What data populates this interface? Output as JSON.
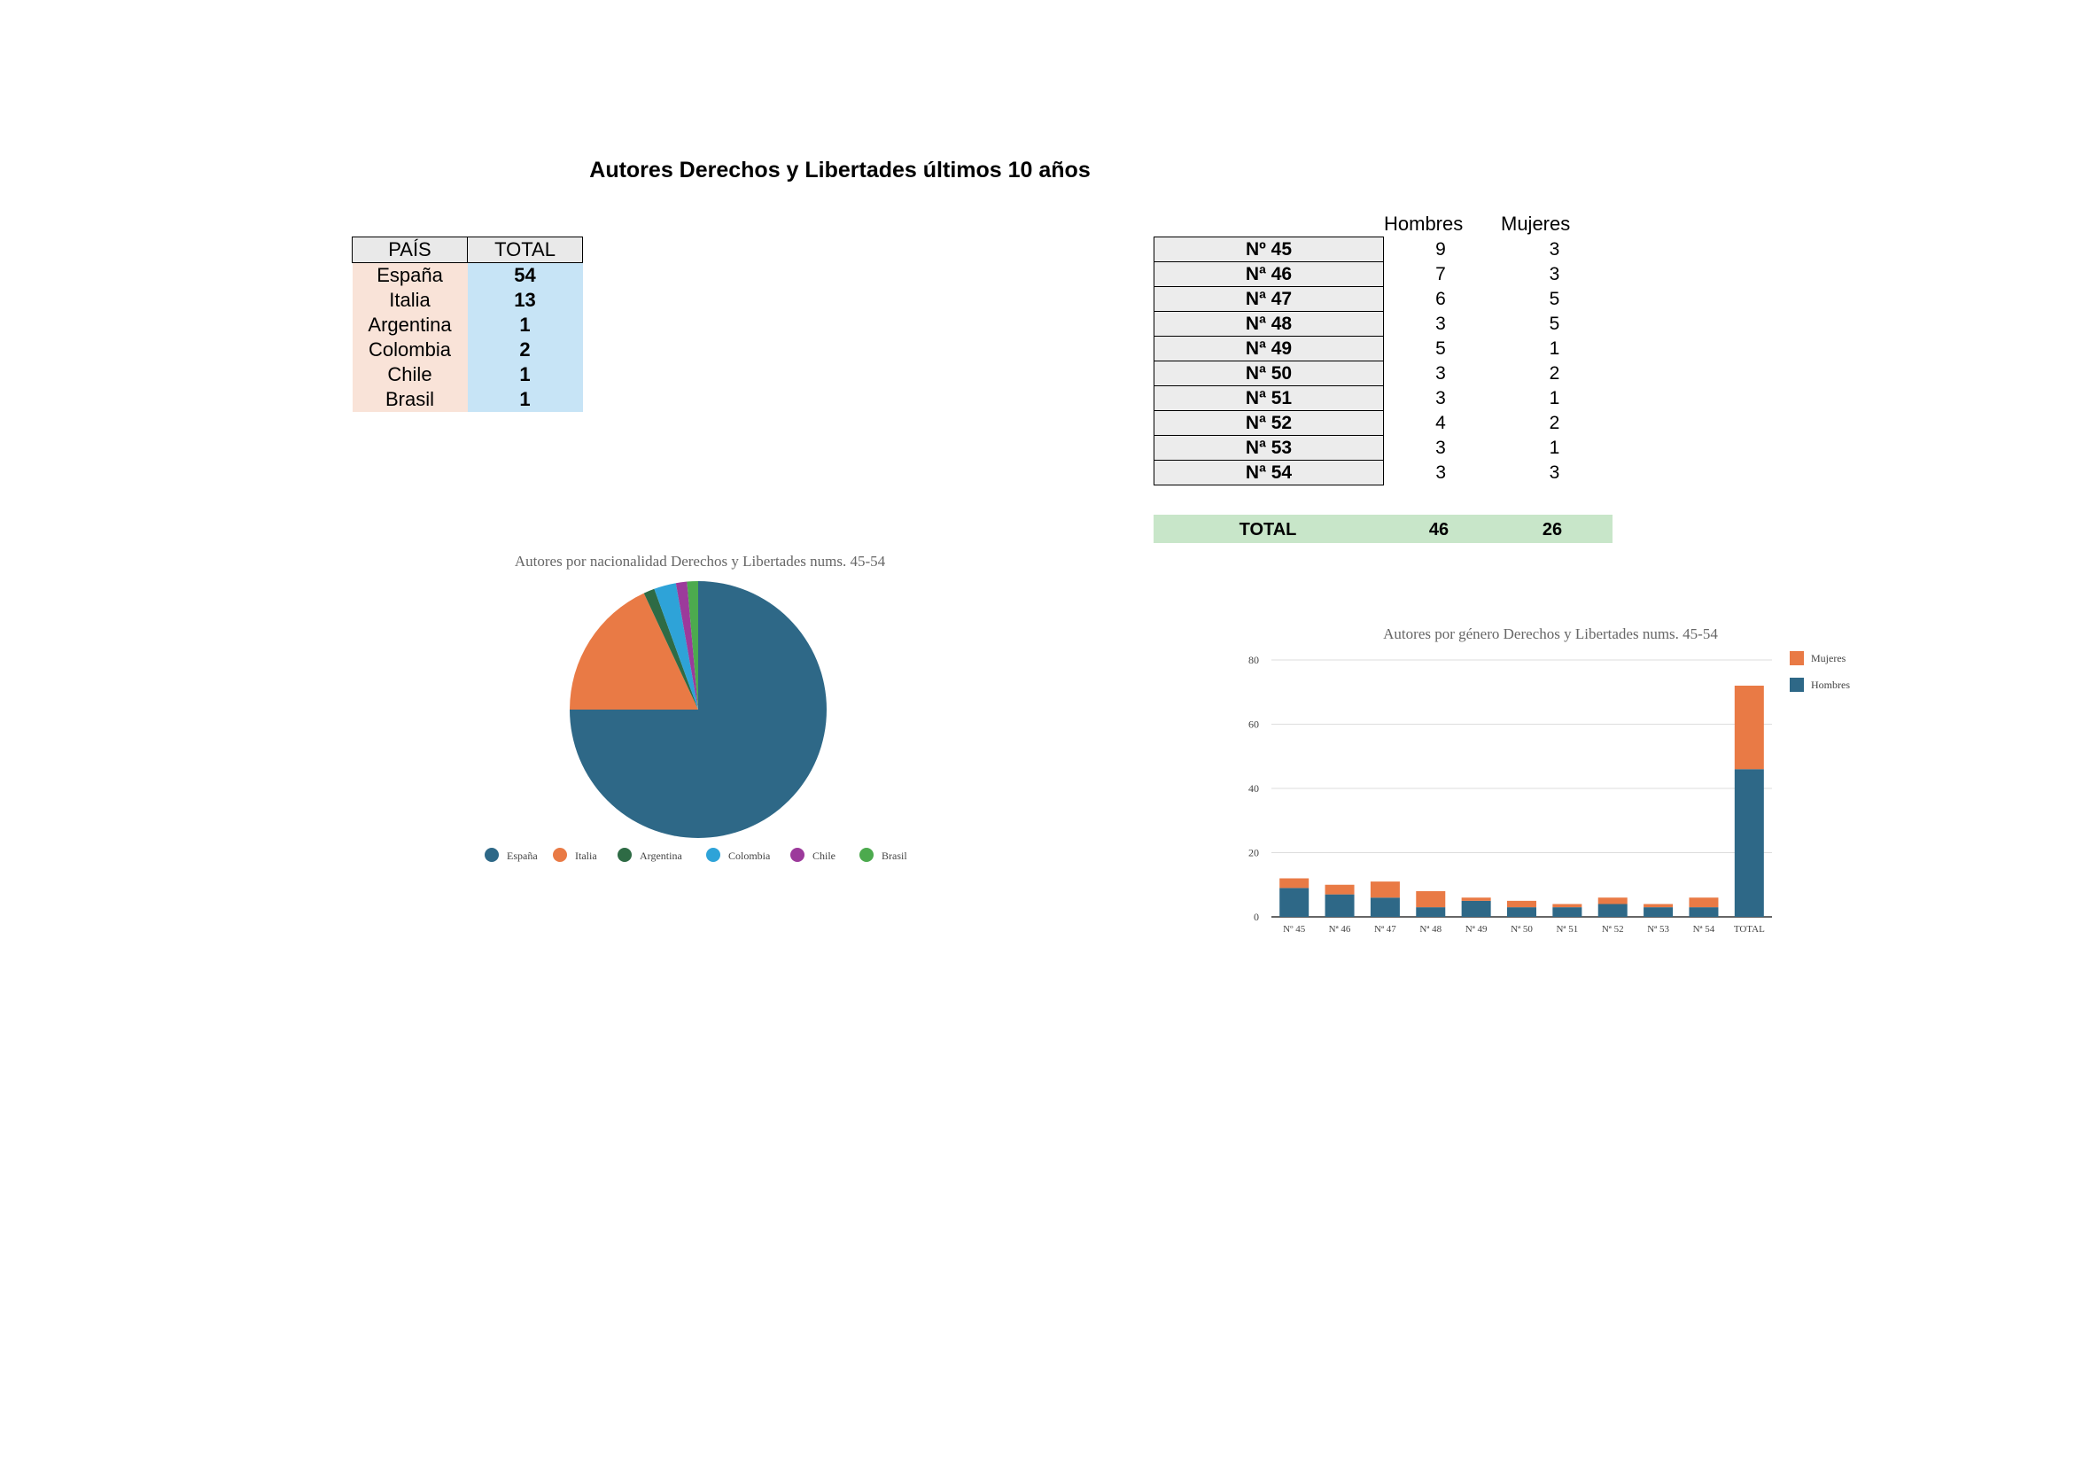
{
  "page": {
    "title": "Autores Derechos y Libertades últimos 10 años"
  },
  "country_table": {
    "headers": [
      "PAÍS",
      "TOTAL"
    ],
    "rows": [
      {
        "pais": "España",
        "total": "54"
      },
      {
        "pais": "Italia",
        "total": "13"
      },
      {
        "pais": "Argentina",
        "total": "1"
      },
      {
        "pais": "Colombia",
        "total": "2"
      },
      {
        "pais": "Chile",
        "total": "1"
      },
      {
        "pais": "Brasil",
        "total": "1"
      }
    ]
  },
  "gender_table": {
    "headers": [
      "Hombres",
      "Mujeres"
    ],
    "rows": [
      {
        "issue": "Nº 45",
        "hombres": "9",
        "mujeres": "3"
      },
      {
        "issue": "Nª 46",
        "hombres": "7",
        "mujeres": "3"
      },
      {
        "issue": "Nª 47",
        "hombres": "6",
        "mujeres": "5"
      },
      {
        "issue": "Nª 48",
        "hombres": "3",
        "mujeres": "5"
      },
      {
        "issue": "Nª 49",
        "hombres": "5",
        "mujeres": "1"
      },
      {
        "issue": "Nª 50",
        "hombres": "3",
        "mujeres": "2"
      },
      {
        "issue": "Nª 51",
        "hombres": "3",
        "mujeres": "1"
      },
      {
        "issue": "Nª 52",
        "hombres": "4",
        "mujeres": "2"
      },
      {
        "issue": "Nª 53",
        "hombres": "3",
        "mujeres": "1"
      },
      {
        "issue": "Nª 54",
        "hombres": "3",
        "mujeres": "3"
      }
    ],
    "total": {
      "label": "TOTAL",
      "hombres": "46",
      "mujeres": "26"
    }
  },
  "chart_data": [
    {
      "type": "pie",
      "title": "Autores por nacionalidad Derechos y Libertades nums. 45-54",
      "categories": [
        "España",
        "Italia",
        "Argentina",
        "Colombia",
        "Chile",
        "Brasil"
      ],
      "values": [
        54,
        13,
        1,
        2,
        1,
        1
      ],
      "colors": [
        "#2e6887",
        "#e97a45",
        "#2e6b45",
        "#2ea3d8",
        "#9c3a9b",
        "#4caa4e"
      ],
      "legend": "bottom"
    },
    {
      "type": "bar",
      "stacked": true,
      "title": "Autores por género Derechos y Libertades nums. 45-54",
      "categories": [
        "Nº 45",
        "Nª 46",
        "Nª 47",
        "Nª 48",
        "Nª 49",
        "Nª 50",
        "Nª 51",
        "Nª 52",
        "Nª 53",
        "Nª 54",
        "TOTAL"
      ],
      "series": [
        {
          "name": "Hombres",
          "values": [
            9,
            7,
            6,
            3,
            5,
            3,
            3,
            4,
            3,
            3,
            46
          ],
          "color": "#2e6887"
        },
        {
          "name": "Mujeres",
          "values": [
            3,
            3,
            5,
            5,
            1,
            2,
            1,
            2,
            1,
            3,
            26
          ],
          "color": "#e97a45"
        }
      ],
      "ylim": [
        0,
        80
      ],
      "yticks": [
        "0",
        "20",
        "40",
        "60",
        "80"
      ],
      "grid": true,
      "legend": "top-right"
    }
  ]
}
